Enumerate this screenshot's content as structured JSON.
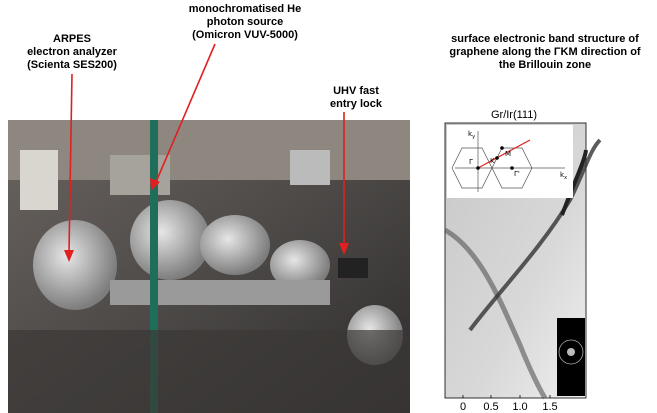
{
  "labels": {
    "analyzer": [
      "ARPES",
      "electron analyzer",
      "(Scienta SES200)"
    ],
    "source": [
      "monochromatised He",
      "photon source",
      "(Omicron VUV-5000)"
    ],
    "lock": [
      "UHV fast",
      "entry lock"
    ]
  },
  "panel": {
    "title": [
      "surface electronic band structure of",
      "graphene along the ΓKM direction of",
      "the Brillouin zone"
    ],
    "sample": "Gr/Ir(111)",
    "ticks": [
      "0",
      "0.5",
      "1.0",
      "1.5"
    ],
    "inset": {
      "ky": "k",
      "ky_sub": "y",
      "kx": "k",
      "kx_sub": "x",
      "gamma": "Γ",
      "k": "K",
      "m": "M",
      "gamma2": "Γ'"
    }
  }
}
